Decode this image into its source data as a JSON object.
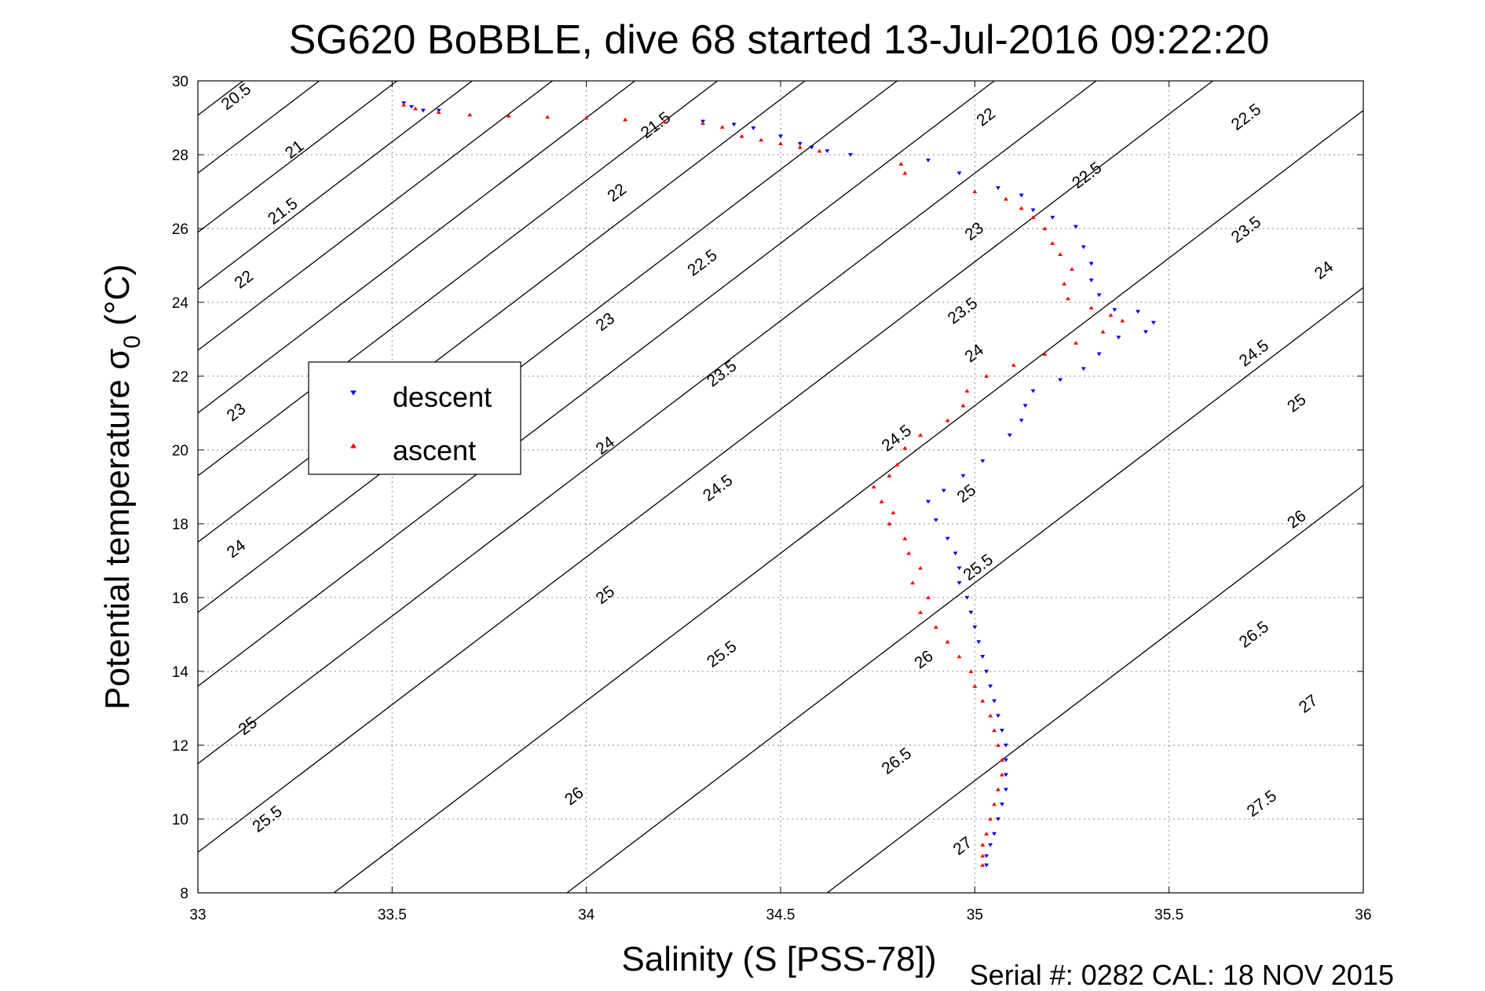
{
  "chart_data": {
    "type": "scatter",
    "title": "SG620 BoBBLE, dive 68 started 13-Jul-2016 09:22:20",
    "xlabel": "Salinity (S [PSS-78])",
    "ylabel": "Potential temperature σ",
    "ylabel_subscript": "0",
    "ylabel_unit": "(°C)",
    "xlim": [
      33,
      36
    ],
    "ylim": [
      8,
      30
    ],
    "x_ticks": [
      "33",
      "33.5",
      "34",
      "34.5",
      "35",
      "35.5",
      "36"
    ],
    "y_ticks": [
      "8",
      "10",
      "12",
      "14",
      "16",
      "18",
      "20",
      "22",
      "24",
      "26",
      "28",
      "30"
    ],
    "grid": true,
    "legend_position": "left",
    "footer": "Serial #: 0282  CAL: 18 NOV 2015",
    "colors": {
      "descent": "#0000ff",
      "ascent": "#ff0000",
      "isopycnal": "#000000",
      "grid": "#888888"
    },
    "isopycnals": [
      {
        "sigma": 20.5,
        "label": "20.5",
        "x0": 33.0,
        "t0": 29.07,
        "label_positions": [
          [
            33.1,
            29.55
          ]
        ]
      },
      {
        "sigma": 21,
        "label": "21",
        "x0": 33.0,
        "t0": 27.5,
        "label_positions": [
          [
            33.25,
            28.12
          ]
        ]
      },
      {
        "sigma": 21.5,
        "label": "21.5",
        "x0": 33.0,
        "t0": 25.9,
        "label_positions": [
          [
            33.22,
            26.45
          ],
          [
            34.18,
            28.78
          ]
        ]
      },
      {
        "sigma": 22,
        "label": "22",
        "x0": 33.0,
        "t0": 24.35,
        "label_positions": [
          [
            33.12,
            24.6
          ],
          [
            34.08,
            26.95
          ],
          [
            35.03,
            29.0
          ]
        ]
      },
      {
        "sigma": 22.5,
        "label": "22.5",
        "x0": 33.0,
        "t0": 22.7,
        "label_positions": [
          [
            34.3,
            25.05
          ],
          [
            35.29,
            27.42
          ],
          [
            35.7,
            29.0
          ]
        ]
      },
      {
        "sigma": 23,
        "label": "23",
        "x0": 33.0,
        "t0": 21.0,
        "label_positions": [
          [
            33.1,
            21.0
          ],
          [
            34.05,
            23.45
          ],
          [
            35.0,
            25.9
          ]
        ]
      },
      {
        "sigma": 23.5,
        "label": "23.5",
        "x0": 33.0,
        "t0": 19.3,
        "label_positions": [
          [
            34.35,
            22.05
          ],
          [
            34.97,
            23.75
          ],
          [
            35.7,
            25.95
          ]
        ]
      },
      {
        "sigma": 24,
        "label": "24",
        "x0": 33.0,
        "t0": 17.5,
        "label_positions": [
          [
            33.1,
            17.3
          ],
          [
            34.05,
            20.1
          ],
          [
            35.0,
            22.6
          ],
          [
            35.9,
            24.85
          ]
        ]
      },
      {
        "sigma": 24.5,
        "label": "24.5",
        "x0": 33.0,
        "t0": 15.6,
        "label_positions": [
          [
            34.34,
            18.95
          ],
          [
            34.8,
            20.3
          ],
          [
            35.72,
            22.6
          ]
        ]
      },
      {
        "sigma": 25,
        "label": "25",
        "x0": 33.0,
        "t0": 13.6,
        "label_positions": [
          [
            33.13,
            12.5
          ],
          [
            34.05,
            16.05
          ],
          [
            34.98,
            18.8
          ],
          [
            35.83,
            21.25
          ]
        ]
      },
      {
        "sigma": 25.5,
        "label": "25.5",
        "x0": 33.0,
        "t0": 11.5,
        "label_positions": [
          [
            33.18,
            9.98
          ],
          [
            34.35,
            14.45
          ],
          [
            35.01,
            16.8
          ]
        ]
      },
      {
        "sigma": 26,
        "label": "26",
        "x0": 33.0,
        "t0": 9.1,
        "label_positions": [
          [
            33.97,
            10.6
          ],
          [
            34.87,
            14.3
          ],
          [
            35.83,
            18.1
          ]
        ]
      },
      {
        "sigma": 26.5,
        "label": "26.5",
        "x0": 33.35,
        "t0": 8.0,
        "label_positions": [
          [
            34.8,
            11.55
          ],
          [
            35.72,
            14.98
          ]
        ]
      },
      {
        "sigma": 27,
        "label": "27",
        "x0": 33.95,
        "t0": 8.0,
        "label_positions": [
          [
            34.97,
            9.25
          ],
          [
            35.86,
            13.1
          ]
        ]
      },
      {
        "sigma": 27.5,
        "label": "27.5",
        "x0": 34.62,
        "t0": 8.0,
        "label_positions": [
          [
            35.74,
            10.4
          ]
        ]
      }
    ],
    "series": [
      {
        "name": "descent",
        "marker": "down-triangle",
        "color": "#0000ff",
        "points": [
          [
            33.53,
            29.4
          ],
          [
            33.55,
            29.3
          ],
          [
            33.58,
            29.2
          ],
          [
            33.62,
            29.2
          ],
          [
            34.3,
            28.9
          ],
          [
            34.38,
            28.82
          ],
          [
            34.43,
            28.72
          ],
          [
            34.5,
            28.5
          ],
          [
            34.55,
            28.3
          ],
          [
            34.58,
            28.2
          ],
          [
            34.62,
            28.1
          ],
          [
            34.68,
            28.0
          ],
          [
            34.88,
            27.85
          ],
          [
            34.96,
            27.5
          ],
          [
            35.06,
            27.1
          ],
          [
            35.12,
            26.9
          ],
          [
            35.15,
            26.5
          ],
          [
            35.2,
            26.3
          ],
          [
            35.26,
            26.05
          ],
          [
            35.28,
            25.5
          ],
          [
            35.3,
            25.05
          ],
          [
            35.3,
            24.6
          ],
          [
            35.32,
            24.2
          ],
          [
            35.36,
            23.8
          ],
          [
            35.42,
            23.75
          ],
          [
            35.46,
            23.45
          ],
          [
            35.44,
            23.2
          ],
          [
            35.37,
            23.05
          ],
          [
            35.32,
            22.6
          ],
          [
            35.28,
            22.2
          ],
          [
            35.22,
            21.9
          ],
          [
            35.15,
            21.6
          ],
          [
            35.13,
            21.2
          ],
          [
            35.12,
            20.8
          ],
          [
            35.09,
            20.4
          ],
          [
            35.02,
            19.7
          ],
          [
            34.97,
            19.3
          ],
          [
            34.92,
            18.9
          ],
          [
            34.88,
            18.6
          ],
          [
            34.9,
            18.1
          ],
          [
            34.93,
            17.6
          ],
          [
            34.95,
            17.2
          ],
          [
            34.96,
            16.8
          ],
          [
            34.96,
            16.4
          ],
          [
            34.98,
            16.0
          ],
          [
            34.99,
            15.6
          ],
          [
            35.0,
            15.2
          ],
          [
            35.01,
            14.8
          ],
          [
            35.02,
            14.4
          ],
          [
            35.03,
            14.0
          ],
          [
            35.04,
            13.6
          ],
          [
            35.05,
            13.2
          ],
          [
            35.06,
            12.8
          ],
          [
            35.07,
            12.4
          ],
          [
            35.08,
            12.0
          ],
          [
            35.08,
            11.6
          ],
          [
            35.08,
            11.2
          ],
          [
            35.08,
            10.8
          ],
          [
            35.07,
            10.4
          ],
          [
            35.06,
            10.0
          ],
          [
            35.05,
            9.6
          ],
          [
            35.04,
            9.3
          ],
          [
            35.03,
            9.0
          ],
          [
            35.03,
            8.75
          ]
        ]
      },
      {
        "name": "ascent",
        "marker": "up-triangle",
        "color": "#ff0000",
        "points": [
          [
            33.53,
            29.35
          ],
          [
            33.56,
            29.25
          ],
          [
            33.62,
            29.15
          ],
          [
            33.7,
            29.08
          ],
          [
            33.8,
            29.05
          ],
          [
            33.9,
            29.02
          ],
          [
            34.0,
            29.0
          ],
          [
            34.1,
            28.95
          ],
          [
            34.2,
            28.9
          ],
          [
            34.3,
            28.85
          ],
          [
            34.35,
            28.75
          ],
          [
            34.4,
            28.5
          ],
          [
            34.45,
            28.4
          ],
          [
            34.5,
            28.3
          ],
          [
            34.55,
            28.2
          ],
          [
            34.6,
            28.1
          ],
          [
            34.81,
            27.75
          ],
          [
            34.82,
            27.5
          ],
          [
            35.0,
            27.0
          ],
          [
            35.08,
            26.8
          ],
          [
            35.12,
            26.55
          ],
          [
            35.15,
            26.3
          ],
          [
            35.18,
            26.0
          ],
          [
            35.2,
            25.6
          ],
          [
            35.22,
            25.3
          ],
          [
            35.25,
            24.9
          ],
          [
            35.23,
            24.5
          ],
          [
            35.24,
            24.1
          ],
          [
            35.3,
            23.85
          ],
          [
            35.35,
            23.65
          ],
          [
            35.38,
            23.5
          ],
          [
            35.33,
            23.2
          ],
          [
            35.26,
            22.9
          ],
          [
            35.18,
            22.6
          ],
          [
            35.1,
            22.3
          ],
          [
            35.03,
            22.0
          ],
          [
            34.98,
            21.6
          ],
          [
            34.97,
            21.2
          ],
          [
            34.93,
            20.8
          ],
          [
            34.86,
            20.4
          ],
          [
            34.82,
            20.05
          ],
          [
            34.8,
            19.6
          ],
          [
            34.78,
            19.3
          ],
          [
            34.74,
            19.0
          ],
          [
            34.76,
            18.6
          ],
          [
            34.79,
            18.3
          ],
          [
            34.78,
            18.0
          ],
          [
            34.82,
            17.6
          ],
          [
            34.83,
            17.2
          ],
          [
            34.86,
            16.8
          ],
          [
            34.84,
            16.4
          ],
          [
            34.88,
            16.0
          ],
          [
            34.86,
            15.6
          ],
          [
            34.9,
            15.2
          ],
          [
            34.93,
            14.8
          ],
          [
            34.96,
            14.4
          ],
          [
            34.99,
            14.0
          ],
          [
            35.0,
            13.6
          ],
          [
            35.02,
            13.2
          ],
          [
            35.04,
            12.8
          ],
          [
            35.05,
            12.4
          ],
          [
            35.06,
            12.0
          ],
          [
            35.07,
            11.6
          ],
          [
            35.07,
            11.2
          ],
          [
            35.06,
            10.8
          ],
          [
            35.05,
            10.4
          ],
          [
            35.04,
            10.0
          ],
          [
            35.03,
            9.6
          ],
          [
            35.02,
            9.3
          ],
          [
            35.02,
            9.0
          ],
          [
            35.02,
            8.75
          ]
        ]
      }
    ]
  }
}
